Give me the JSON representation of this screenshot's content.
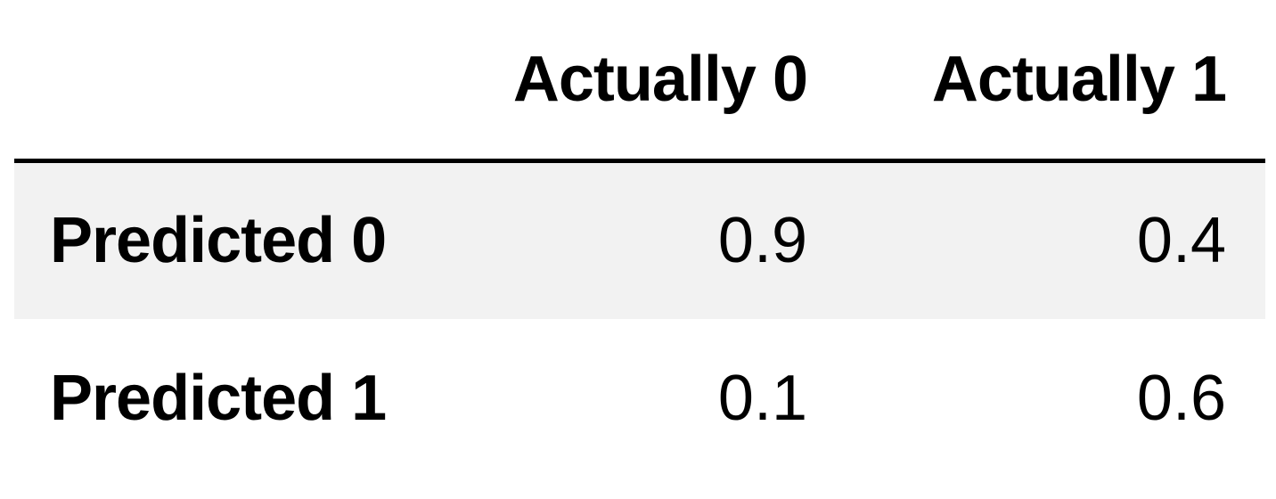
{
  "table": {
    "columns": [
      "Actually 0",
      "Actually 1"
    ],
    "rows": [
      {
        "label": "Predicted 0",
        "values": [
          "0.9",
          "0.4"
        ]
      },
      {
        "label": "Predicted 1",
        "values": [
          "0.1",
          "0.6"
        ]
      }
    ]
  },
  "chart_data": {
    "type": "table",
    "columns": [
      "Actually 0",
      "Actually 1"
    ],
    "index": [
      "Predicted 0",
      "Predicted 1"
    ],
    "values": [
      [
        0.9,
        0.4
      ],
      [
        0.1,
        0.6
      ]
    ],
    "title": ""
  }
}
